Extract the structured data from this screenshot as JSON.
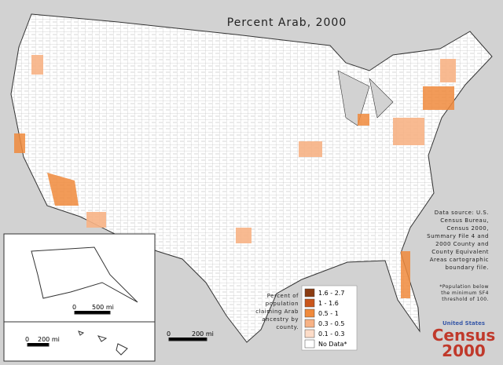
{
  "title": "Percent Arab, 2000",
  "legend": {
    "title": "Percent of population claiming Arab ancestry by county.",
    "items": [
      {
        "label": "1.6 - 2.7",
        "color": "#8a3b12"
      },
      {
        "label": "1 - 1.6",
        "color": "#c9561c"
      },
      {
        "label": "0.5 - 1",
        "color": "#f08a3c"
      },
      {
        "label": "0.3 - 0.5",
        "color": "#f7b285"
      },
      {
        "label": "0.1 - 0.3",
        "color": "#fcdcc8"
      },
      {
        "label": "No Data*",
        "color": "#ffffff"
      }
    ]
  },
  "source": "Data source: U.S. Census Bureau, Census 2000, Summary File 4 and 2000 County and County Equivalent Areas cartographic boundary file.",
  "footnote": "*Population below the minimum SF4 threshold of 100.",
  "scale_bars": {
    "alaska": [
      "0",
      "500 mi"
    ],
    "hawaii": [
      "0",
      "200 mi"
    ],
    "main": [
      "0",
      "200 mi"
    ]
  },
  "logo": {
    "top": "United States",
    "middle": "Census",
    "bottom": "2000"
  }
}
